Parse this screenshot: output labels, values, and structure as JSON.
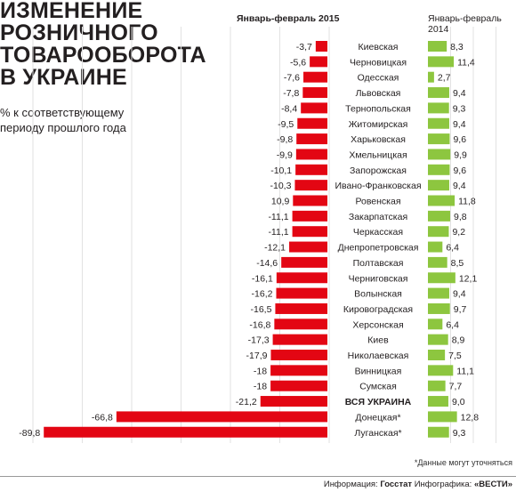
{
  "title_lines": [
    "ИЗМЕНЕНИЕ",
    "РОЗНИЧНОГО",
    "ТОВАРООБОРОТА",
    "В УКРАИНЕ"
  ],
  "subtitle_lines": [
    "% к соответствующему",
    "периоду прошлого года"
  ],
  "colors": {
    "negative": "#e30613",
    "positive": "#8dc63f"
  },
  "chart_data": {
    "type": "bar",
    "categories": [
      "Киевская",
      "Черновицкая",
      "Одесская",
      "Львовская",
      "Тернопольская",
      "Житомирская",
      "Харьковская",
      "Хмельницкая",
      "Запорожская",
      "Ивано-Франковская",
      "Ровенская",
      "Закарпатская",
      "Черкасская",
      "Днепропетровская",
      "Полтавская",
      "Черниговская",
      "Волынская",
      "Кировоградская",
      "Херсонская",
      "Киев",
      "Николаевская",
      "Винницкая",
      "Сумская",
      "ВСЯ УКРАИНА",
      "Донецкая*",
      "Луганская*"
    ],
    "series": [
      {
        "name": "Январь-февраль 2015",
        "values": [
          -3.7,
          -5.6,
          -7.6,
          -7.8,
          -8.4,
          -9.5,
          -9.8,
          -9.9,
          -10.1,
          -10.3,
          10.9,
          -11.1,
          -11.1,
          -12.1,
          -14.6,
          -16.1,
          -16.2,
          -16.5,
          -16.8,
          -17.3,
          -17.9,
          -18,
          -18,
          -21.2,
          -66.8,
          -89.8
        ],
        "labels": [
          "-3,7",
          "-5,6",
          "-7,6",
          "-7,8",
          "-8,4",
          "-9,5",
          "-9,8",
          "-9,9",
          "-10,1",
          "-10,3",
          "10,9",
          "-11,1",
          "-11,1",
          "-12,1",
          "-14,6",
          "-16,1",
          "-16,2",
          "-16,5",
          "-16,8",
          "-17,3",
          "-17,9",
          "-18",
          "-18",
          "-21,2",
          "-66,8",
          "-89,8"
        ]
      },
      {
        "name": "Январь-февраль 2014",
        "values": [
          8.3,
          11.4,
          2.7,
          9.4,
          9.3,
          9.4,
          9.6,
          9.9,
          9.6,
          9.4,
          11.8,
          9.8,
          9.2,
          6.4,
          8.5,
          12.1,
          9.4,
          9.7,
          6.4,
          8.9,
          7.5,
          11.1,
          7.7,
          9.0,
          12.8,
          9.3
        ],
        "labels": [
          "8,3",
          "11,4",
          "2,7",
          "9,4",
          "9,3",
          "9,4",
          "9,6",
          "9,9",
          "9,6",
          "9,4",
          "11,8",
          "9,8",
          "9,2",
          "6,4",
          "8,5",
          "12,1",
          "9,4",
          "9,7",
          "6,4",
          "8,9",
          "7,5",
          "11,1",
          "7,7",
          "9,0",
          "12,8",
          "9,3"
        ]
      }
    ],
    "bold_category": "ВСЯ УКРАИНА"
  },
  "note": "*Данные могут уточняться",
  "footer": {
    "source_label": "Информация:",
    "source": "Госстат",
    "graphics_label": "Инфографика:",
    "graphics": "«ВЕСТИ»"
  }
}
